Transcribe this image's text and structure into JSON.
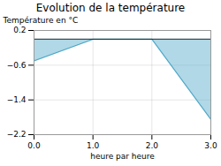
{
  "chart_data": {
    "type": "area",
    "title": "Evolution de la température",
    "xlabel": "heure par heure",
    "ylabel": "Température en °C",
    "x": [
      0,
      1,
      2,
      3
    ],
    "values": [
      -0.5,
      0.0,
      0.0,
      -1.85
    ],
    "color": "#50a8c8",
    "xlim": [
      0,
      3
    ],
    "ylim": [
      -2.2,
      0.2
    ],
    "xticks": [
      0,
      1,
      2,
      3
    ],
    "yticks": [
      0.2,
      -0.6,
      -1.4,
      -2.2
    ],
    "grid": true
  }
}
